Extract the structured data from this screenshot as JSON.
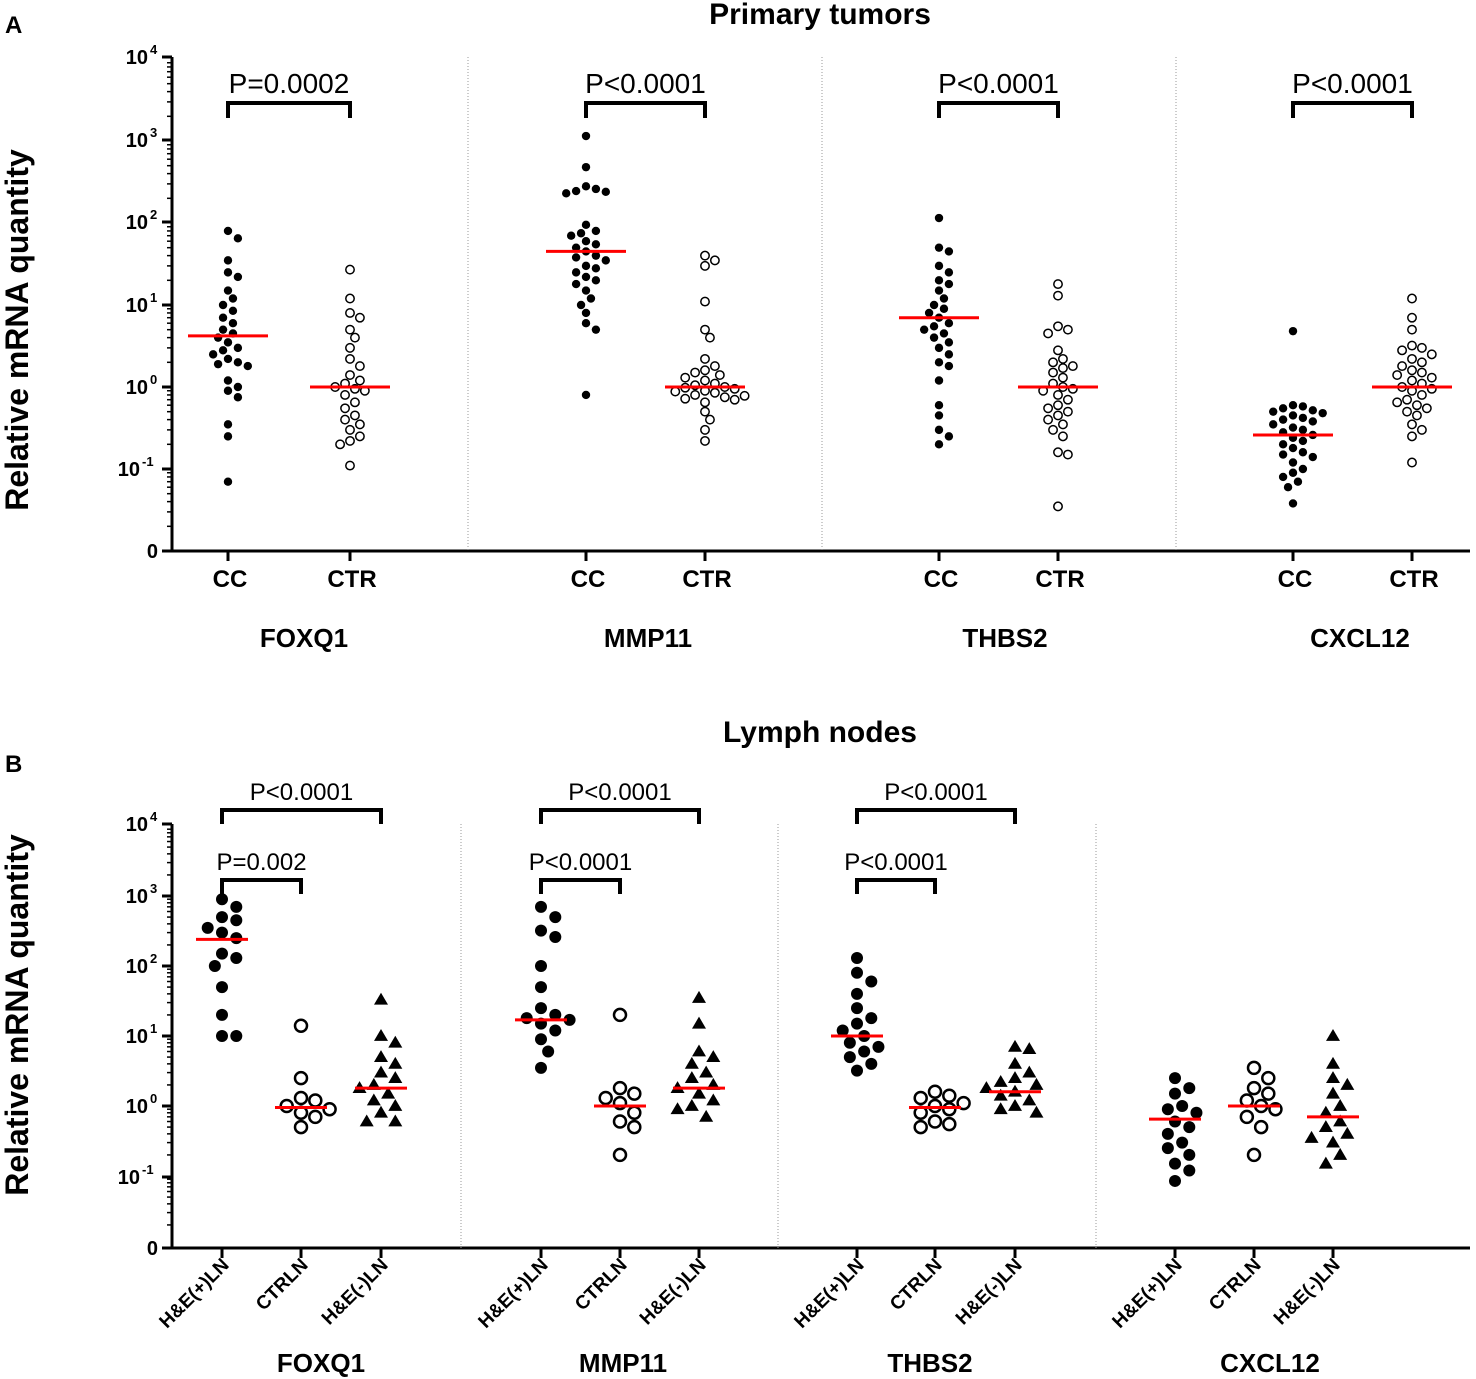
{
  "figure": {
    "panel_a_letter": "A",
    "panel_b_letter": "B",
    "ylabel": "Relative mRNA quantity"
  },
  "colors": {
    "median": "#ff0000",
    "marker": "#000000",
    "divider": "#999999"
  },
  "chart_data": [
    {
      "id": "A",
      "type": "scatter",
      "subtype": "dot-plot-log",
      "title": "Primary tumors",
      "ylabel": "Relative mRNA quantity",
      "yscale": "log",
      "ylim": [
        0.01,
        10000
      ],
      "yticks": [
        {
          "base": "10",
          "exp": "4",
          "value": 10000
        },
        {
          "base": "10",
          "exp": "3",
          "value": 1000
        },
        {
          "base": "10",
          "exp": "2",
          "value": 100
        },
        {
          "base": "10",
          "exp": "1",
          "value": 10
        },
        {
          "base": "10",
          "exp": "0",
          "value": 1
        },
        {
          "base": "10",
          "exp": "-1",
          "value": 0.1
        },
        {
          "base": "0",
          "exp": "",
          "value": 0.01
        }
      ],
      "groups": [
        {
          "gene": "FOXQ1",
          "pvalue": "P=0.0002",
          "categories": [
            {
              "label": "CC",
              "marker": "filled-circle",
              "median": 4.2,
              "values": [
                80,
                65,
                35,
                25,
                22,
                15,
                12,
                10,
                8.5,
                7,
                6,
                5,
                4.5,
                4,
                3.5,
                3,
                2.8,
                2.5,
                2.2,
                2,
                1.9,
                1.8,
                1.2,
                1,
                0.9,
                0.75,
                0.35,
                0.25,
                0.07
              ]
            },
            {
              "label": "CTR",
              "marker": "open-circle",
              "median": 1.0,
              "values": [
                27,
                12,
                8,
                7,
                5,
                4,
                3,
                2.2,
                1.8,
                1.4,
                1.2,
                1.1,
                1,
                0.95,
                0.9,
                0.8,
                0.65,
                0.55,
                0.45,
                0.4,
                0.35,
                0.3,
                0.25,
                0.22,
                0.2,
                0.11
              ]
            }
          ],
          "brackets": [
            {
              "from": 0,
              "to": 1,
              "text": "P=0.0002",
              "level": 0
            }
          ]
        },
        {
          "gene": "MMP11",
          "pvalue": "P<0.0001",
          "categories": [
            {
              "label": "CC",
              "marker": "filled-circle",
              "median": 45,
              "values": [
                1150,
                480,
                280,
                260,
                245,
                240,
                230,
                95,
                80,
                75,
                70,
                60,
                55,
                50,
                45,
                40,
                38,
                35,
                30,
                28,
                25,
                22,
                20,
                18,
                15,
                12,
                10,
                8,
                6,
                5,
                0.8
              ]
            },
            {
              "label": "CTR",
              "marker": "open-circle",
              "median": 1.0,
              "values": [
                40,
                35,
                30,
                11,
                5,
                4,
                2.2,
                1.8,
                1.6,
                1.5,
                1.4,
                1.3,
                1.2,
                1.1,
                1.05,
                1,
                0.98,
                0.95,
                0.9,
                0.88,
                0.85,
                0.8,
                0.78,
                0.75,
                0.72,
                0.7,
                0.65,
                0.5,
                0.4,
                0.3,
                0.22
              ]
            }
          ],
          "brackets": [
            {
              "from": 0,
              "to": 1,
              "text": "P<0.0001",
              "level": 0
            }
          ]
        },
        {
          "gene": "THBS2",
          "pvalue": "P<0.0001",
          "categories": [
            {
              "label": "CC",
              "marker": "filled-circle",
              "median": 7.0,
              "values": [
                115,
                50,
                45,
                30,
                25,
                20,
                18,
                15,
                12,
                10,
                9,
                8,
                7,
                6,
                5.5,
                5,
                4.5,
                4,
                3.5,
                3,
                2.5,
                2,
                1.8,
                1.2,
                0.6,
                0.45,
                0.3,
                0.25,
                0.2
              ]
            },
            {
              "label": "CTR",
              "marker": "open-circle",
              "median": 1.0,
              "values": [
                18,
                13,
                5.5,
                5,
                4.5,
                2.8,
                2.2,
                2,
                1.8,
                1.7,
                1.5,
                1.3,
                1.1,
                1,
                0.95,
                0.9,
                0.8,
                0.7,
                0.6,
                0.55,
                0.5,
                0.45,
                0.4,
                0.35,
                0.3,
                0.25,
                0.16,
                0.15,
                0.035
              ]
            }
          ],
          "brackets": [
            {
              "from": 0,
              "to": 1,
              "text": "P<0.0001",
              "level": 0
            }
          ]
        },
        {
          "gene": "CXCL12",
          "pvalue": "P<0.0001",
          "categories": [
            {
              "label": "CC",
              "marker": "filled-circle",
              "median": 0.26,
              "values": [
                4.8,
                0.6,
                0.58,
                0.55,
                0.52,
                0.5,
                0.48,
                0.45,
                0.42,
                0.4,
                0.38,
                0.35,
                0.32,
                0.3,
                0.28,
                0.26,
                0.24,
                0.22,
                0.2,
                0.18,
                0.16,
                0.15,
                0.14,
                0.12,
                0.1,
                0.09,
                0.08,
                0.07,
                0.06,
                0.038
              ]
            },
            {
              "label": "CTR",
              "marker": "open-circle",
              "median": 1.0,
              "values": [
                12,
                7,
                5,
                3.2,
                3,
                2.8,
                2.5,
                2.2,
                2,
                1.8,
                1.6,
                1.5,
                1.4,
                1.3,
                1.2,
                1.1,
                1,
                0.95,
                0.9,
                0.8,
                0.7,
                0.65,
                0.6,
                0.55,
                0.5,
                0.45,
                0.35,
                0.3,
                0.25,
                0.12
              ]
            }
          ],
          "brackets": [
            {
              "from": 0,
              "to": 1,
              "text": "P<0.0001",
              "level": 0
            }
          ]
        }
      ]
    },
    {
      "id": "B",
      "type": "scatter",
      "subtype": "dot-plot-log",
      "title": "Lymph nodes",
      "ylabel": "Relative mRNA quantity",
      "yscale": "log",
      "ylim": [
        0.01,
        10000
      ],
      "yticks": [
        {
          "base": "10",
          "exp": "4",
          "value": 10000
        },
        {
          "base": "10",
          "exp": "3",
          "value": 1000
        },
        {
          "base": "10",
          "exp": "2",
          "value": 100
        },
        {
          "base": "10",
          "exp": "1",
          "value": 10
        },
        {
          "base": "10",
          "exp": "0",
          "value": 1
        },
        {
          "base": "10",
          "exp": "-1",
          "value": 0.1
        },
        {
          "base": "0",
          "exp": "",
          "value": 0.01
        }
      ],
      "groups": [
        {
          "gene": "FOXQ1",
          "categories": [
            {
              "label": "H&E(+)LN",
              "marker": "filled-circle-large",
              "median": 240,
              "values": [
                900,
                700,
                500,
                450,
                350,
                300,
                250,
                150,
                130,
                100,
                50,
                20,
                10,
                10
              ]
            },
            {
              "label": "CTRLN",
              "marker": "open-circle-large",
              "median": 0.95,
              "values": [
                14,
                2.5,
                1.3,
                1.2,
                1,
                0.9,
                0.8,
                0.7,
                0.5
              ]
            },
            {
              "label": "H&E(-)LN",
              "marker": "filled-triangle",
              "median": 1.8,
              "values": [
                33,
                10,
                8,
                5,
                4,
                3,
                2.5,
                2,
                1.8,
                1.5,
                1.2,
                1,
                0.8,
                0.6,
                0.6
              ]
            }
          ],
          "brackets": [
            {
              "from": 0,
              "to": 1,
              "text": "P=0.002",
              "level": 0
            },
            {
              "from": 0,
              "to": 2,
              "text": "P<0.0001",
              "level": 1
            }
          ]
        },
        {
          "gene": "MMP11",
          "categories": [
            {
              "label": "H&E(+)LN",
              "marker": "filled-circle-large",
              "median": 17,
              "values": [
                700,
                500,
                320,
                260,
                100,
                50,
                25,
                20,
                18,
                17,
                15,
                12,
                9,
                6,
                3.5
              ]
            },
            {
              "label": "CTRLN",
              "marker": "open-circle-large",
              "median": 1.0,
              "values": [
                20,
                1.8,
                1.5,
                1.3,
                1.1,
                0.8,
                0.6,
                0.5,
                0.2
              ]
            },
            {
              "label": "H&E(-)LN",
              "marker": "filled-triangle",
              "median": 1.8,
              "values": [
                35,
                15,
                6,
                5,
                4,
                3,
                2.5,
                2,
                1.8,
                1.5,
                1.2,
                1,
                0.9,
                0.7
              ]
            }
          ],
          "brackets": [
            {
              "from": 0,
              "to": 1,
              "text": "P<0.0001",
              "level": 0
            },
            {
              "from": 0,
              "to": 2,
              "text": "P<0.0001",
              "level": 1
            }
          ]
        },
        {
          "gene": "THBS2",
          "categories": [
            {
              "label": "H&E(+)LN",
              "marker": "filled-circle-large",
              "median": 10,
              "values": [
                130,
                80,
                60,
                40,
                25,
                18,
                15,
                12,
                10,
                8,
                7,
                6,
                5,
                4,
                3.2
              ]
            },
            {
              "label": "CTRLN",
              "marker": "open-circle-large",
              "median": 0.95,
              "values": [
                1.6,
                1.4,
                1.3,
                1.1,
                1,
                0.9,
                0.8,
                0.6,
                0.55,
                0.5
              ]
            },
            {
              "label": "H&E(-)LN",
              "marker": "filled-triangle",
              "median": 1.6,
              "values": [
                7,
                6.5,
                4,
                3,
                2.5,
                2.2,
                2,
                1.8,
                1.6,
                1.4,
                1.2,
                1,
                0.9,
                0.8
              ]
            }
          ],
          "brackets": [
            {
              "from": 0,
              "to": 1,
              "text": "P<0.0001",
              "level": 0
            },
            {
              "from": 0,
              "to": 2,
              "text": "P<0.0001",
              "level": 1
            }
          ]
        },
        {
          "gene": "CXCL12",
          "categories": [
            {
              "label": "H&E(+)LN",
              "marker": "filled-circle-large",
              "median": 0.65,
              "values": [
                2.5,
                1.8,
                1.5,
                1,
                0.9,
                0.8,
                0.6,
                0.5,
                0.4,
                0.3,
                0.25,
                0.2,
                0.15,
                0.12,
                0.085
              ]
            },
            {
              "label": "CTRLN",
              "marker": "open-circle-large",
              "median": 1.0,
              "values": [
                3.5,
                2.5,
                1.8,
                1.5,
                1.2,
                1,
                0.9,
                0.7,
                0.5,
                0.2
              ]
            },
            {
              "label": "H&E(-)LN",
              "marker": "filled-triangle",
              "median": 0.7,
              "values": [
                10,
                4,
                2.5,
                2,
                1.5,
                1,
                0.8,
                0.6,
                0.5,
                0.4,
                0.35,
                0.3,
                0.2,
                0.15
              ]
            }
          ],
          "brackets": []
        }
      ]
    }
  ]
}
